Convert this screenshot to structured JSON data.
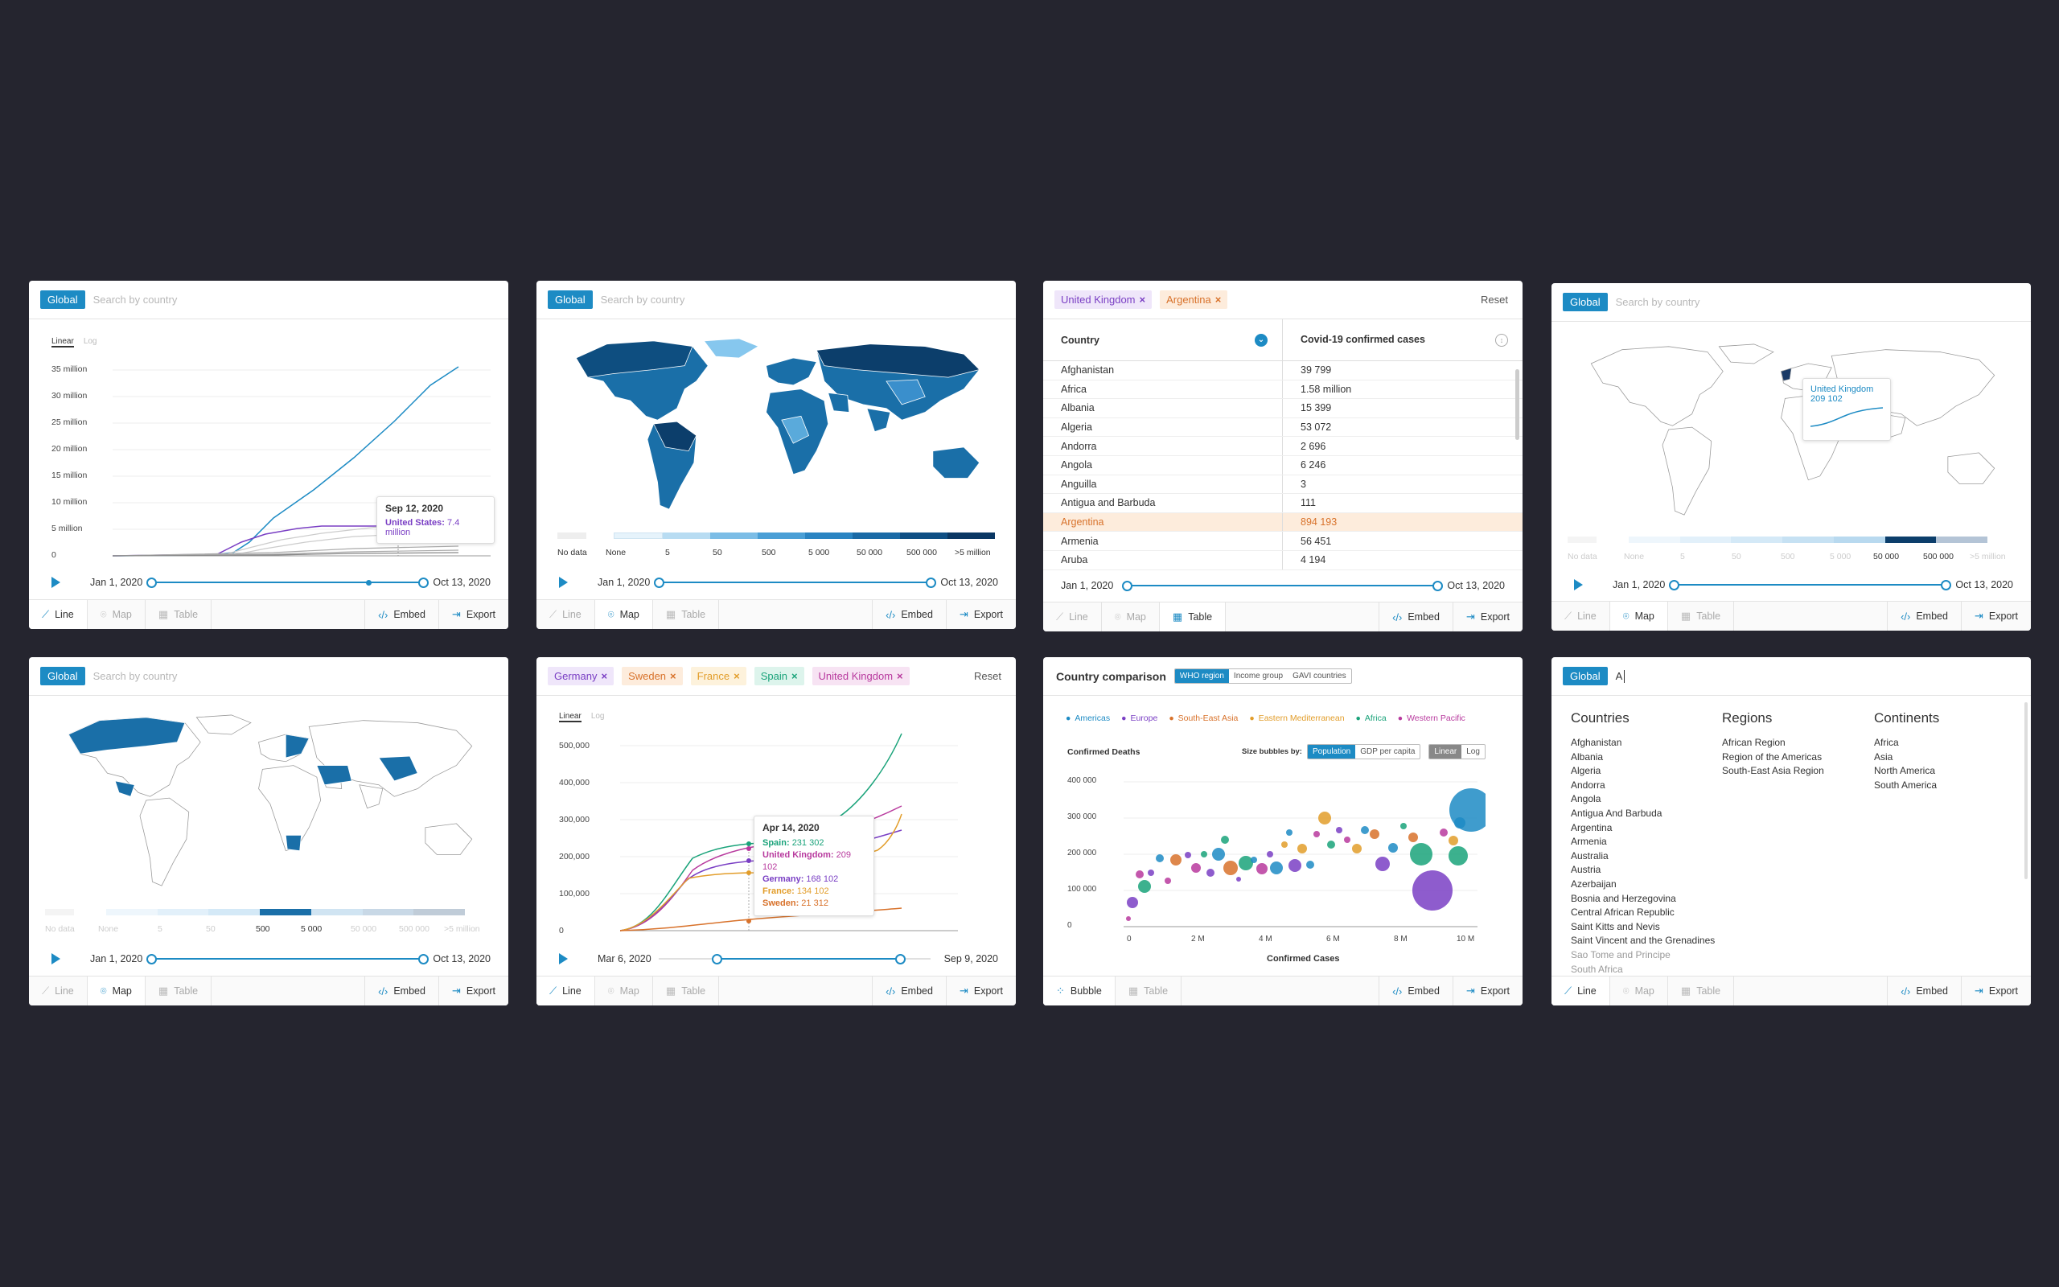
{
  "colors": {
    "accent": "#1d8bc4",
    "highlight": "#d8722b"
  },
  "common": {
    "global_btn": "Global",
    "search_placeholder": "Search by country",
    "reset": "Reset",
    "linear": "Linear",
    "log": "Log",
    "tabs": {
      "line": "Line",
      "map": "Map",
      "table": "Table",
      "bubble": "Bubble",
      "embed": "Embed",
      "export": "Export"
    },
    "start_date": "Jan 1, 2020",
    "end_date": "Oct 13, 2020"
  },
  "card1": {
    "y_ticks": [
      "35 million",
      "30 million",
      "25 million",
      "20 million",
      "15 million",
      "10 million",
      "5 million",
      "0"
    ],
    "tooltip_date": "Sep 12, 2020",
    "tooltip_label": "United States:",
    "tooltip_value": "7.4 million",
    "chart_data": {
      "type": "line",
      "ylim": [
        0,
        35000000
      ],
      "y_ticks": [
        0,
        5000000,
        10000000,
        15000000,
        20000000,
        25000000,
        30000000,
        35000000
      ],
      "series": [
        {
          "name": "United States",
          "values": [
            {
              "x": "2020-09-12",
              "y": 7400000
            }
          ]
        }
      ]
    }
  },
  "map_legend": {
    "labels": [
      "No data",
      "None",
      "5",
      "50",
      "500",
      "5 000",
      "50 000",
      "500 000",
      ">5 million"
    ]
  },
  "card3": {
    "chips": [
      {
        "label": "United Kingdom",
        "color": "#7a3fc4",
        "bg": "#efe6fa"
      },
      {
        "label": "Argentina",
        "color": "#d8722b",
        "bg": "#fdecdc"
      }
    ],
    "col1": "Country",
    "col2": "Covid-19 confirmed cases",
    "rows": [
      [
        "Afghanistan",
        "39 799"
      ],
      [
        "Africa",
        "1.58 million"
      ],
      [
        "Albania",
        "15 399"
      ],
      [
        "Algeria",
        "53 072"
      ],
      [
        "Andorra",
        "2 696"
      ],
      [
        "Angola",
        "6 246"
      ],
      [
        "Anguilla",
        "3"
      ],
      [
        "Antigua and Barbuda",
        "111"
      ],
      [
        "Argentina",
        "894 193"
      ],
      [
        "Armenia",
        "56 451"
      ],
      [
        "Aruba",
        "4 194"
      ]
    ]
  },
  "card4": {
    "tooltip_country": "United Kingdom",
    "tooltip_value": "209 102"
  },
  "card6": {
    "chips": [
      {
        "label": "Germany",
        "color": "#7a3fc4",
        "bg": "#efe6fa"
      },
      {
        "label": "Sweden",
        "color": "#d8722b",
        "bg": "#fdecdc"
      },
      {
        "label": "France",
        "color": "#e29d2a",
        "bg": "#fdf2dc"
      },
      {
        "label": "Spain",
        "color": "#1aa37a",
        "bg": "#ddf4ec"
      },
      {
        "label": "United Kingdom",
        "color": "#b83a9e",
        "bg": "#f7e3f3"
      }
    ],
    "y_ticks": [
      "500,000",
      "400,000",
      "300,000",
      "200,000",
      "100,000",
      "0"
    ],
    "start_date": "Mar 6, 2020",
    "end_date": "Sep 9, 2020",
    "tooltip_date": "Apr 14, 2020",
    "tooltip_rows": [
      {
        "label": "Spain:",
        "value": "231 302",
        "color": "#1aa37a"
      },
      {
        "label": "United Kingdom:",
        "value": "209 102",
        "color": "#b83a9e"
      },
      {
        "label": "Germany:",
        "value": "168 102",
        "color": "#7a3fc4"
      },
      {
        "label": "France:",
        "value": "134 102",
        "color": "#e29d2a"
      },
      {
        "label": "Sweden:",
        "value": "21 312",
        "color": "#d8722b"
      }
    ],
    "chart_data": {
      "type": "line",
      "ylim": [
        0,
        500000
      ],
      "y_ticks": [
        0,
        100000,
        200000,
        300000,
        400000,
        500000
      ],
      "series": [
        {
          "name": "Spain",
          "values": [
            {
              "x": "2020-04-14",
              "y": 231302
            }
          ]
        },
        {
          "name": "United Kingdom",
          "values": [
            {
              "x": "2020-04-14",
              "y": 209102
            }
          ]
        },
        {
          "name": "Germany",
          "values": [
            {
              "x": "2020-04-14",
              "y": 168102
            }
          ]
        },
        {
          "name": "France",
          "values": [
            {
              "x": "2020-04-14",
              "y": 134102
            }
          ]
        },
        {
          "name": "Sweden",
          "values": [
            {
              "x": "2020-04-14",
              "y": 21312
            }
          ]
        }
      ]
    }
  },
  "card7": {
    "title": "Country comparison",
    "region_tabs": [
      "WHO region",
      "Income group",
      "GAVI countries"
    ],
    "legend": [
      {
        "label": "Americas",
        "color": "#1d8bc4"
      },
      {
        "label": "Europe",
        "color": "#7a3fc4"
      },
      {
        "label": "South-East Asia",
        "color": "#d8722b"
      },
      {
        "label": "Eastern Mediterranean",
        "color": "#e29d2a"
      },
      {
        "label": "Africa",
        "color": "#1aa37a"
      },
      {
        "label": "Western Pacific",
        "color": "#b83a9e"
      }
    ],
    "ylabel": "Confirmed Deaths",
    "size_label": "Size bubbles by:",
    "size_tabs": [
      "Population",
      "GDP per capita"
    ],
    "scale_tabs": [
      "Linear",
      "Log"
    ],
    "y_ticks": [
      "400 000",
      "300 000",
      "200 000",
      "100 000",
      "0"
    ],
    "x_ticks": [
      "0",
      "2 M",
      "4 M",
      "6 M",
      "8 M",
      "10 M"
    ],
    "xlabel": "Confirmed Cases",
    "chart_data": {
      "type": "scatter",
      "xlabel": "Confirmed Cases",
      "ylabel": "Confirmed Deaths",
      "xlim": [
        0,
        10000000
      ],
      "ylim": [
        0,
        400000
      ],
      "x_ticks": [
        0,
        2000000,
        4000000,
        6000000,
        8000000,
        10000000
      ],
      "y_ticks": [
        0,
        100000,
        200000,
        300000,
        400000
      ]
    }
  },
  "card8": {
    "typed": "A",
    "countries_title": "Countries",
    "regions_title": "Regions",
    "continents_title": "Continents",
    "countries": [
      "Afghanistan",
      "Albania",
      "Algeria",
      "Andorra",
      "Angola",
      "Antigua And Barbuda",
      "Argentina",
      "Armenia",
      "Australia",
      "Austria",
      "Azerbaijan",
      "Bosnia and Herzegovina",
      "Central African Republic",
      "Saint Kitts and Nevis",
      "Saint Vincent and the Grenadines",
      "Sao Tome and Principe",
      "South Africa"
    ],
    "regions": [
      "African Region",
      "Region of the Americas",
      "South-East Asia Region"
    ],
    "continents": [
      "Africa",
      "Asia",
      "North America",
      "South America"
    ]
  }
}
